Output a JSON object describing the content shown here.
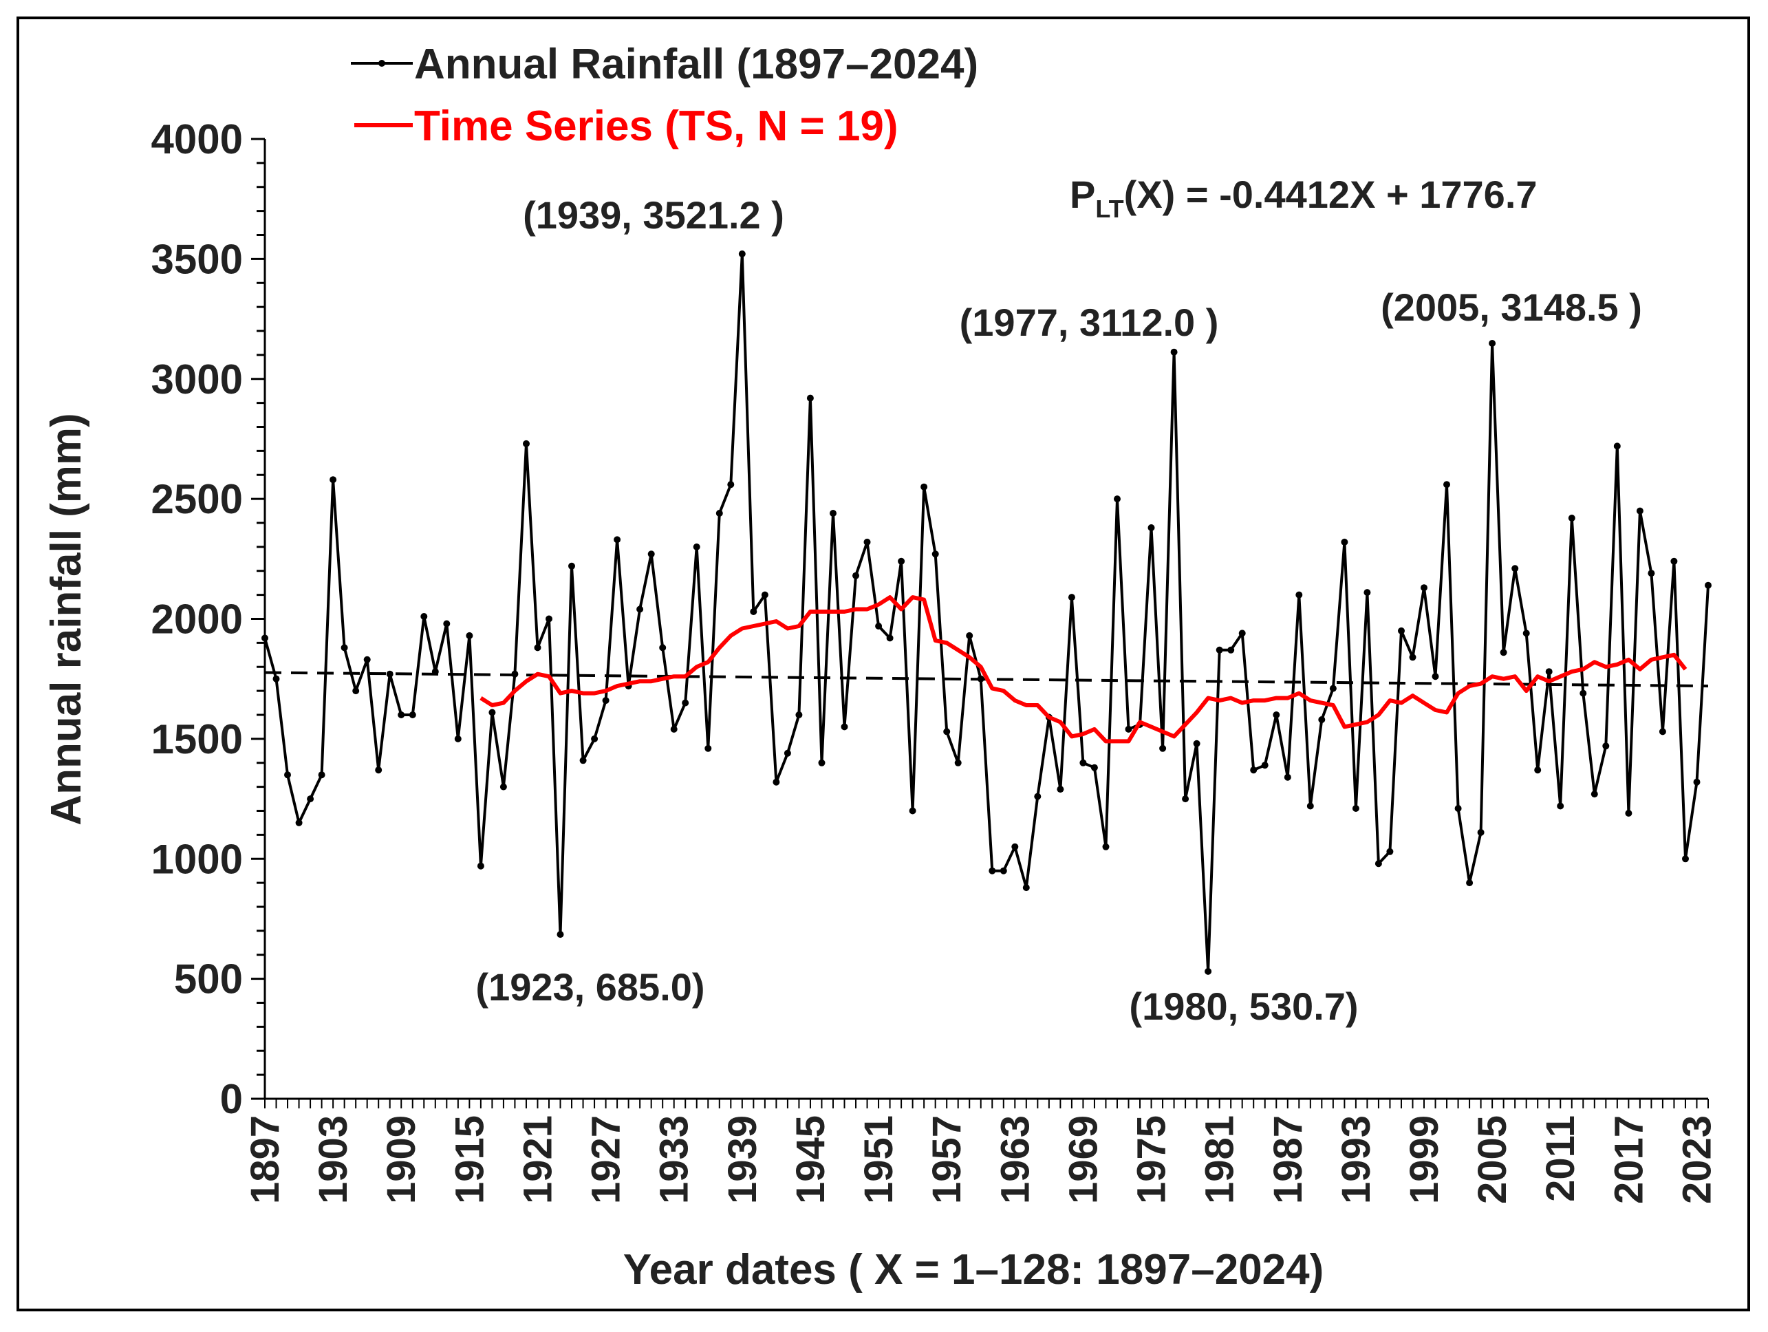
{
  "chart_data": {
    "type": "line",
    "title": "",
    "xlabel": "Year dates ( X = 1–128: 1897–2024)",
    "ylabel": "Annual rainfall (mm)",
    "xlim": [
      1897,
      2024
    ],
    "ylim": [
      0,
      4000
    ],
    "y_ticks": [
      "0",
      "500",
      "1000",
      "1500",
      "2000",
      "2500",
      "3000",
      "3500",
      "4000"
    ],
    "x_ticks": [
      "1897",
      "1903",
      "1909",
      "1915",
      "1921",
      "1927",
      "1933",
      "1939",
      "1945",
      "1951",
      "1957",
      "1963",
      "1969",
      "1975",
      "1981",
      "1987",
      "1993",
      "1999",
      "2005",
      "2011",
      "2017",
      "2023"
    ],
    "grid": false,
    "legend": {
      "position": "top-left",
      "entries": [
        {
          "label": "Annual Rainfall (1897–2024)",
          "color": "#000000",
          "marker": "dot"
        },
        {
          "label": "Time Series (TS, N = 19)",
          "color": "#ff0000",
          "marker": "none"
        }
      ]
    },
    "equation": {
      "main": "P",
      "sub": "LT",
      "rest": "(X) = -0.4412X + 1776.7"
    },
    "trend": {
      "slope": -0.4412,
      "intercept": 1776.7,
      "style": "dashed",
      "color": "#000000"
    },
    "annotations": [
      {
        "text": "(1939, 3521.2 )",
        "x": 1939,
        "y": 3521.2
      },
      {
        "text": "(1977, 3112.0 )",
        "x": 1977,
        "y": 3112.0
      },
      {
        "text": "(2005, 3148.5 )",
        "x": 2005,
        "y": 3148.5
      },
      {
        "text": "(1923, 685.0)",
        "x": 1923,
        "y": 685.0
      },
      {
        "text": "(1980, 530.7)",
        "x": 1980,
        "y": 530.7
      }
    ],
    "series": [
      {
        "name": "Annual Rainfall (1897–2024)",
        "color": "#000000",
        "start_year": 1897,
        "values": [
          1920,
          1750,
          1350,
          1150,
          1250,
          1350,
          2580,
          1880,
          1700,
          1830,
          1370,
          1770,
          1600,
          1600,
          2010,
          1780,
          1980,
          1500,
          1930,
          970,
          1610,
          1300,
          1770,
          2730,
          1880,
          2000,
          685.0,
          2220,
          1410,
          1500,
          1660,
          2330,
          1720,
          2040,
          2270,
          1880,
          1540,
          1650,
          2300,
          1460,
          2440,
          2560,
          3521.2,
          2030,
          2100,
          1320,
          1440,
          1600,
          2920,
          1400,
          2440,
          1550,
          2180,
          2320,
          1970,
          1920,
          2240,
          1200,
          2550,
          2270,
          1530,
          1400,
          1930,
          1750,
          950,
          950,
          1050,
          880,
          1260,
          1590,
          1290,
          2090,
          1400,
          1380,
          1050,
          2500,
          1540,
          1560,
          2380,
          1460,
          3112.0,
          1250,
          1480,
          530.7,
          1870,
          1870,
          1940,
          1370,
          1390,
          1600,
          1340,
          2100,
          1220,
          1580,
          1710,
          2320,
          1210,
          2110,
          980,
          1030,
          1950,
          1840,
          2130,
          1760,
          2560,
          1210,
          900,
          1110,
          3148.5,
          1860,
          2210,
          1940,
          1370,
          1780,
          1220,
          2420,
          1690,
          1270,
          1470,
          2720,
          1190,
          2450,
          2190,
          1530,
          2240,
          1000,
          1320,
          2140
        ]
      },
      {
        "name": "Time Series (TS, N = 19)",
        "color": "#ff0000",
        "start_year": 1916,
        "values": [
          1670,
          1640,
          1650,
          1700,
          1740,
          1770,
          1760,
          1690,
          1700,
          1690,
          1690,
          1700,
          1720,
          1730,
          1740,
          1740,
          1750,
          1760,
          1760,
          1800,
          1820,
          1880,
          1930,
          1960,
          1970,
          1980,
          1990,
          1960,
          1970,
          2030,
          2030,
          2030,
          2030,
          2040,
          2040,
          2060,
          2090,
          2040,
          2090,
          2080,
          1910,
          1900,
          1870,
          1840,
          1800,
          1710,
          1700,
          1660,
          1640,
          1640,
          1590,
          1570,
          1510,
          1520,
          1540,
          1490,
          1490,
          1490,
          1570,
          1550,
          1530,
          1510,
          1560,
          1610,
          1670,
          1660,
          1670,
          1650,
          1660,
          1660,
          1670,
          1670,
          1690,
          1660,
          1650,
          1640,
          1550,
          1560,
          1570,
          1600,
          1660,
          1650,
          1680,
          1650,
          1620,
          1610,
          1690,
          1720,
          1730,
          1760,
          1750,
          1760,
          1700,
          1760,
          1740,
          1760,
          1780,
          1790,
          1820,
          1800,
          1810,
          1830,
          1790,
          1830,
          1840,
          1850,
          1790
        ]
      }
    ]
  }
}
